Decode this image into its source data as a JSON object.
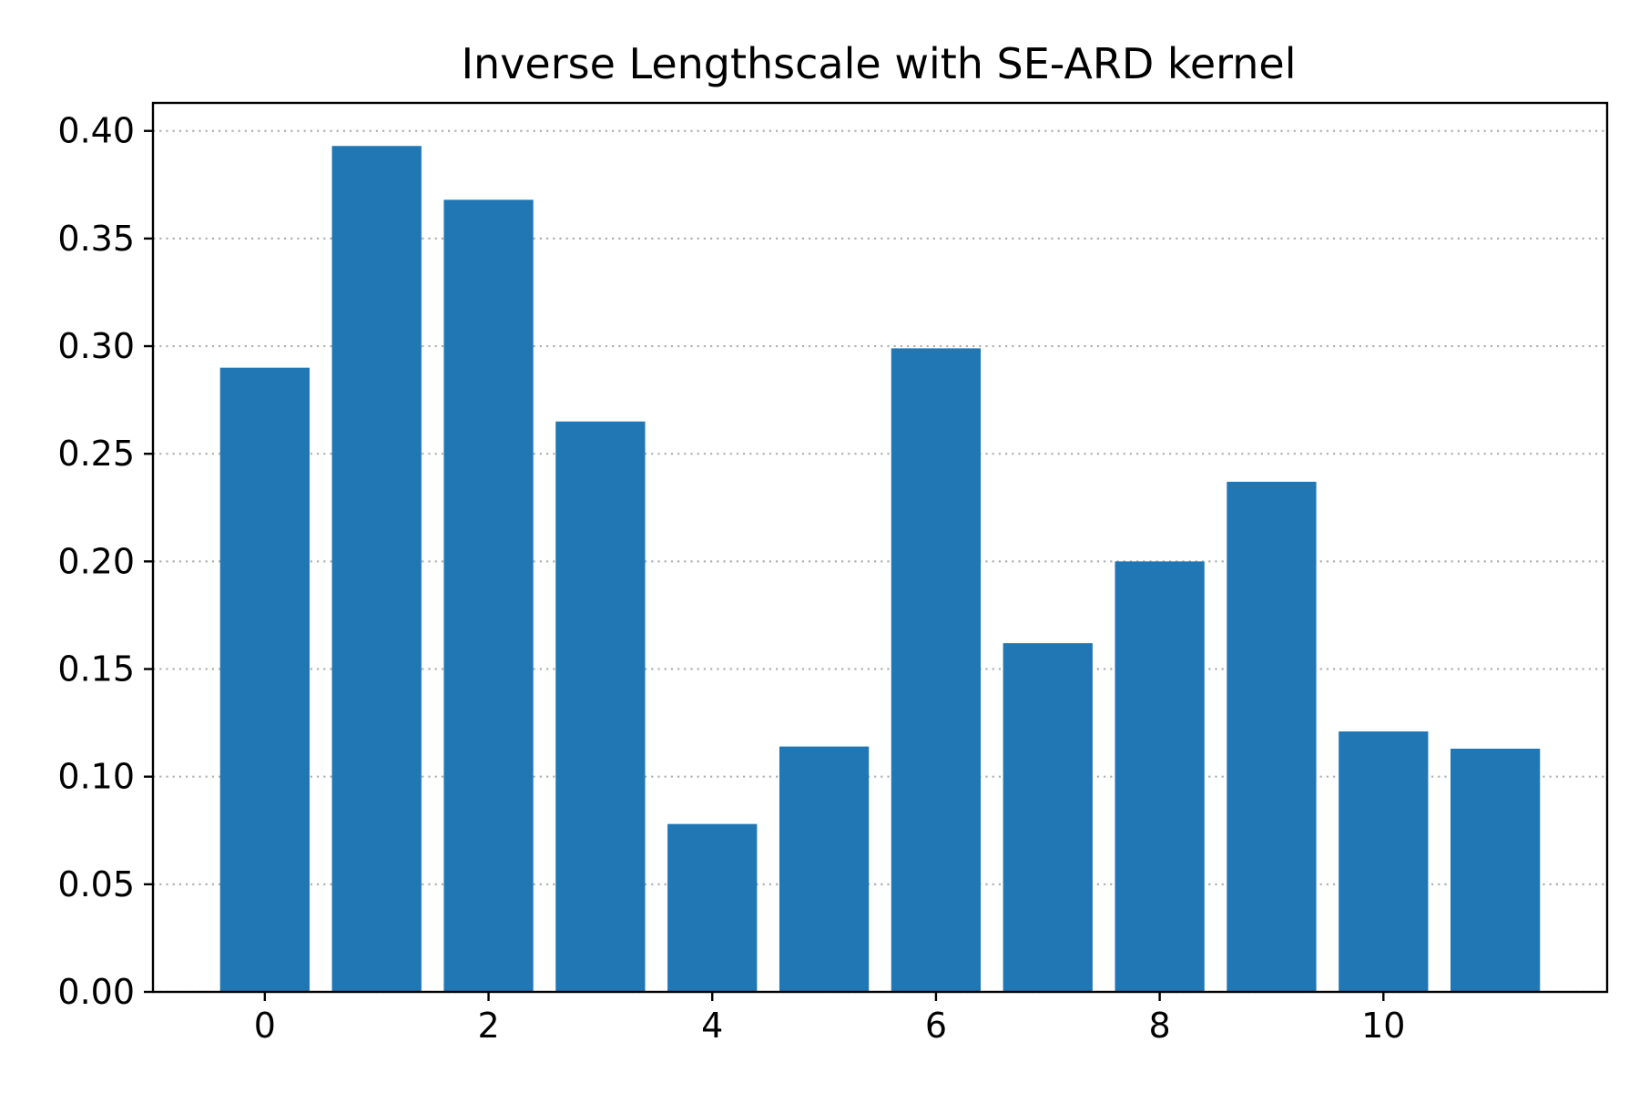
{
  "chart_data": {
    "type": "bar",
    "title": "Inverse Lengthscale with SE-ARD kernel",
    "xlabel": "",
    "ylabel": "",
    "x": [
      0,
      1,
      2,
      3,
      4,
      5,
      6,
      7,
      8,
      9,
      10,
      11
    ],
    "values": [
      0.29,
      0.393,
      0.368,
      0.265,
      0.078,
      0.114,
      0.299,
      0.162,
      0.2,
      0.237,
      0.121,
      0.113
    ],
    "xlim": [
      -1,
      12
    ],
    "ylim": [
      0,
      0.413
    ],
    "xticks": [
      0,
      2,
      4,
      6,
      8,
      10
    ],
    "xtick_labels": [
      "0",
      "2",
      "4",
      "6",
      "8",
      "10"
    ],
    "yticks": [
      0.0,
      0.05,
      0.1,
      0.15,
      0.2,
      0.25,
      0.3,
      0.35,
      0.4
    ],
    "ytick_labels": [
      "0.00",
      "0.05",
      "0.10",
      "0.15",
      "0.20",
      "0.25",
      "0.30",
      "0.35",
      "0.40"
    ],
    "grid": "y-dotted",
    "bar_color": "#2077b4",
    "legend": "none"
  }
}
